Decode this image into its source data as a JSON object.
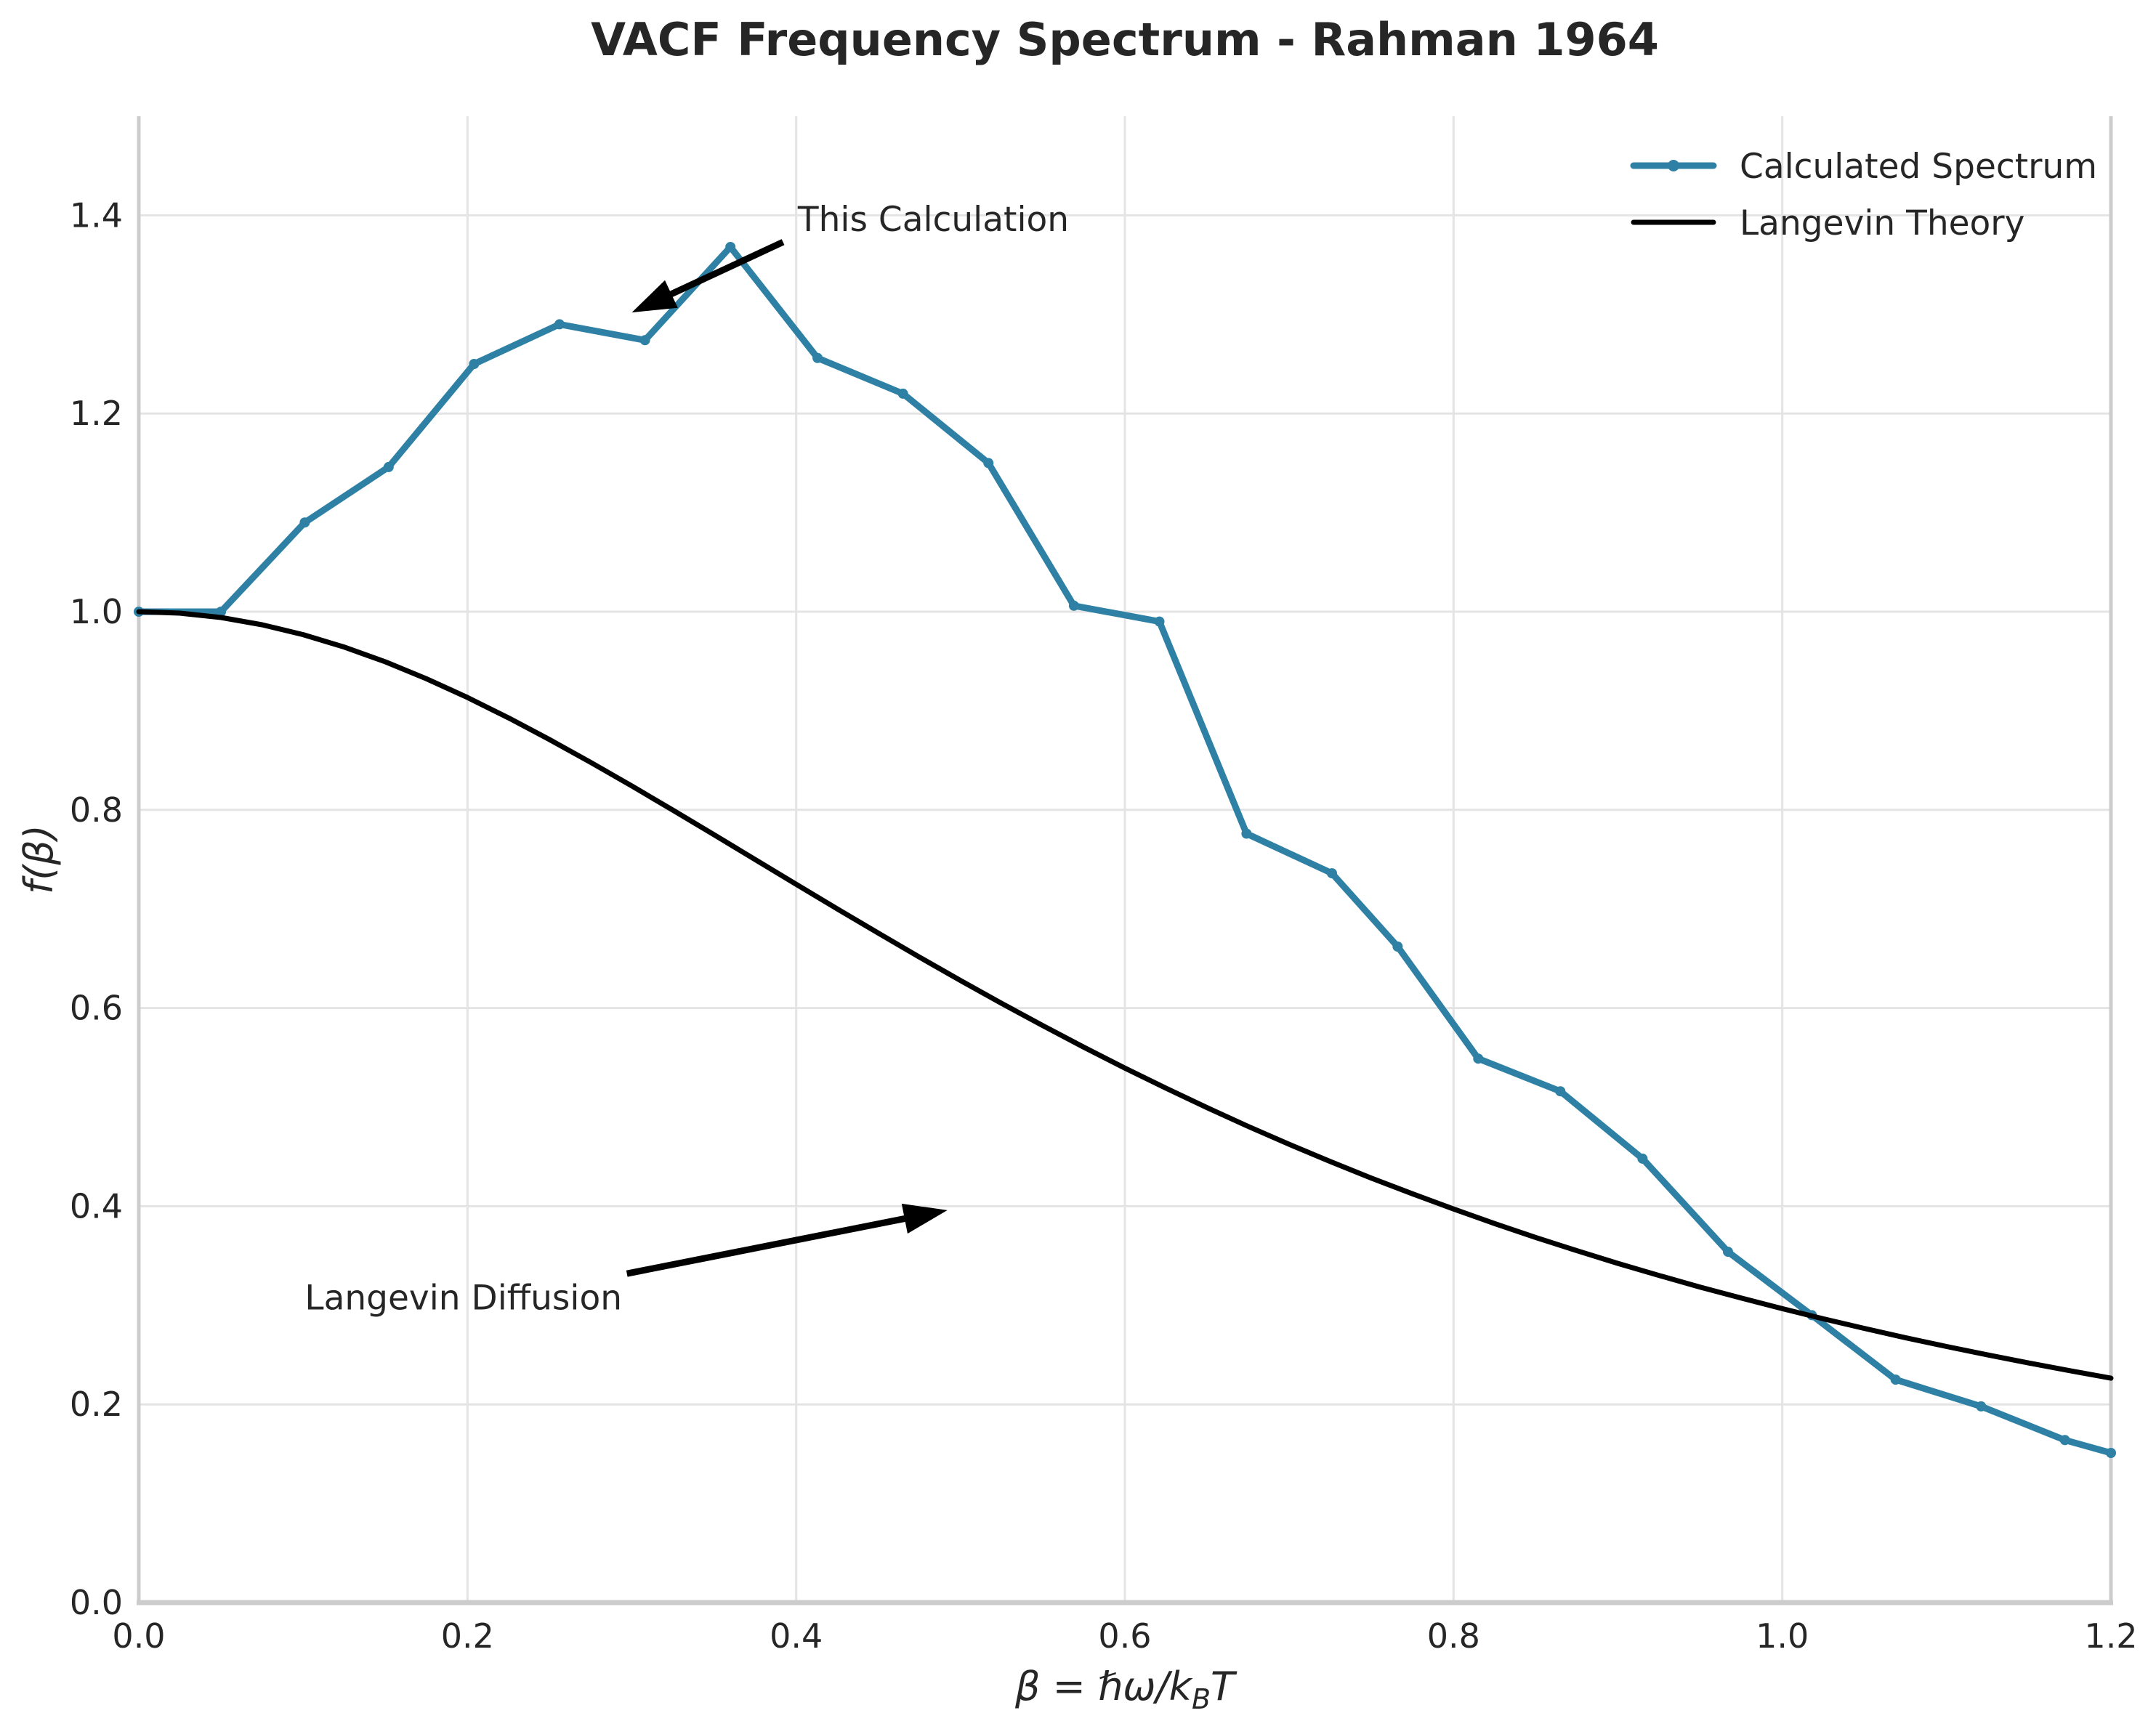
{
  "chart_data": {
    "type": "line",
    "title": "VACF Frequency Spectrum - Rahman 1964",
    "xlabel": "β = ℏω/k_BT",
    "xlabel_parts": {
      "lead": "β = ℏω/k",
      "sub": "B",
      "tail": "T"
    },
    "ylabel": "f(β)",
    "xlim": [
      0.0,
      1.2
    ],
    "ylim": [
      0.0,
      1.5
    ],
    "grid": true,
    "legend_position": "upper right",
    "x_ticks": [
      0.0,
      0.2,
      0.4,
      0.6,
      0.8,
      1.0,
      1.2
    ],
    "x_tick_labels": [
      "0.0",
      "0.2",
      "0.4",
      "0.6",
      "0.8",
      "1.0",
      "1.2"
    ],
    "y_ticks": [
      0.0,
      0.2,
      0.4,
      0.6,
      0.8,
      1.0,
      1.2,
      1.4
    ],
    "y_tick_labels": [
      "0.0",
      "0.2",
      "0.4",
      "0.6",
      "0.8",
      "1.0",
      "1.2",
      "1.4"
    ],
    "series": [
      {
        "name": "Calculated Spectrum",
        "color": "#2e80a4",
        "marker": "circle",
        "line_width": 9,
        "x": [
          0.0,
          0.05,
          0.101,
          0.152,
          0.204,
          0.256,
          0.308,
          0.36,
          0.413,
          0.465,
          0.517,
          0.569,
          0.621,
          0.674,
          0.726,
          0.766,
          0.815,
          0.865,
          0.915,
          0.967,
          1.018,
          1.069,
          1.121,
          1.172,
          1.2
        ],
        "y": [
          1.0,
          1.0,
          1.09,
          1.146,
          1.25,
          1.29,
          1.274,
          1.368,
          1.256,
          1.22,
          1.15,
          1.006,
          0.99,
          0.776,
          0.736,
          0.662,
          0.549,
          0.516,
          0.448,
          0.354,
          0.29,
          0.225,
          0.198,
          0.164,
          0.151
        ]
      },
      {
        "name": "Langevin Theory",
        "color": "#000000",
        "marker": "none",
        "line_width": 7,
        "formula": "f(β) = 1/(1+(1.54β)²)",
        "x": [
          0.0,
          0.025,
          0.05,
          0.075,
          0.1,
          0.125,
          0.15,
          0.175,
          0.2,
          0.225,
          0.25,
          0.275,
          0.3,
          0.325,
          0.35,
          0.375,
          0.4,
          0.425,
          0.45,
          0.475,
          0.5,
          0.525,
          0.55,
          0.575,
          0.6,
          0.625,
          0.65,
          0.675,
          0.7,
          0.725,
          0.75,
          0.775,
          0.8,
          0.825,
          0.85,
          0.875,
          0.9,
          0.925,
          0.95,
          0.975,
          1.0,
          1.025,
          1.05,
          1.075,
          1.1,
          1.125,
          1.15,
          1.175,
          1.2
        ],
        "y": [
          1.0,
          0.9985,
          0.9941,
          0.9868,
          0.9768,
          0.9643,
          0.9494,
          0.9323,
          0.9134,
          0.8928,
          0.8709,
          0.8479,
          0.8241,
          0.7997,
          0.7749,
          0.7499,
          0.7249,
          0.7001,
          0.6756,
          0.6514,
          0.6278,
          0.6047,
          0.5823,
          0.5605,
          0.5394,
          0.5191,
          0.4995,
          0.4806,
          0.4625,
          0.4451,
          0.4284,
          0.4125,
          0.3972,
          0.3825,
          0.3685,
          0.3551,
          0.3423,
          0.3301,
          0.3184,
          0.3073,
          0.2966,
          0.2864,
          0.2767,
          0.2673,
          0.2584,
          0.2499,
          0.2418,
          0.234,
          0.2265
        ]
      }
    ],
    "annotations": [
      {
        "text": "This Calculation",
        "text_xy": [
          0.401,
          1.384
        ],
        "ha": "left",
        "arrow_start": [
          0.392,
          1.373
        ],
        "arrow_end": [
          0.3,
          1.302
        ]
      },
      {
        "text": "Langevin Diffusion",
        "text_xy": [
          0.101,
          0.296
        ],
        "ha": "left",
        "arrow_start": [
          0.297,
          0.332
        ],
        "arrow_end": [
          0.492,
          0.396
        ]
      }
    ]
  },
  "colors": {
    "background": "#ffffff",
    "grid": "#e4e4e4",
    "spine": "#cccccc",
    "text": "#262626",
    "annotation": "#000000",
    "calculated_series": "#2e80a4",
    "langevin_series": "#000000"
  }
}
